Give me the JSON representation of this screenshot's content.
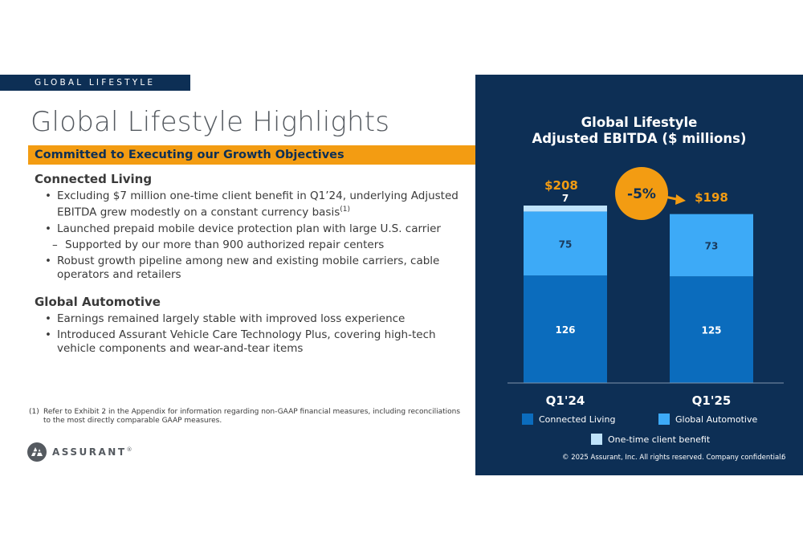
{
  "section_tag": "GLOBAL LIFESTYLE",
  "title": "Global Lifestyle Highlights",
  "subtitle": "Committed to Executing our Growth Objectives",
  "sections": [
    {
      "heading": "Connected Living",
      "bullets": [
        {
          "text": "Excluding $7 million one-time client benefit in Q1’24, underlying Adjusted EBITDA grew modestly on a constant currency basis",
          "sup": "(1)"
        },
        {
          "text": "Launched prepaid mobile device protection plan with large U.S. carrier"
        },
        {
          "text": "Supported by our more than 900 authorized repair centers",
          "sub": true
        },
        {
          "text": "Robust growth pipeline among new and existing mobile carriers, cable operators and retailers"
        }
      ]
    },
    {
      "heading": "Global Automotive",
      "bullets": [
        {
          "text": "Earnings remained largely stable with improved loss experience"
        },
        {
          "text": "Introduced Assurant Vehicle Care Technology Plus, covering high-tech vehicle components and wear-and-tear items"
        }
      ]
    }
  ],
  "footnote": {
    "num": "(1)",
    "text": "Refer to Exhibit 2 in the Appendix for information regarding non-GAAP financial measures, including reconciliations to the most directly comparable GAAP measures."
  },
  "logo_text": "ASSURANT",
  "logo_mark": "®",
  "copyright": "© 2025 Assurant, Inc. All rights reserved. Company confidential.",
  "page_number": "6",
  "colors": {
    "navy": "#0d2f55",
    "orange": "#f39c12",
    "connected_living": "#0b6cbd",
    "global_automotive": "#3daaf7",
    "one_time": "#bfe3fb"
  },
  "chart_data": {
    "type": "bar",
    "stacked": true,
    "title_lines": [
      "Global Lifestyle",
      "Adjusted EBITDA ($ millions)"
    ],
    "categories": [
      "Q1'24",
      "Q1'25"
    ],
    "series": [
      {
        "name": "Connected Living",
        "values": [
          126,
          125
        ],
        "color": "#0b6cbd"
      },
      {
        "name": "Global Automotive",
        "values": [
          75,
          73
        ],
        "color": "#3daaf7"
      },
      {
        "name": "One-time client benefit",
        "values": [
          7,
          0
        ],
        "color": "#bfe3fb"
      }
    ],
    "totals": [
      "$208",
      "$198"
    ],
    "change_label": "-5%",
    "ylim": [
      0,
      208
    ],
    "legend_placement": "bottom"
  }
}
